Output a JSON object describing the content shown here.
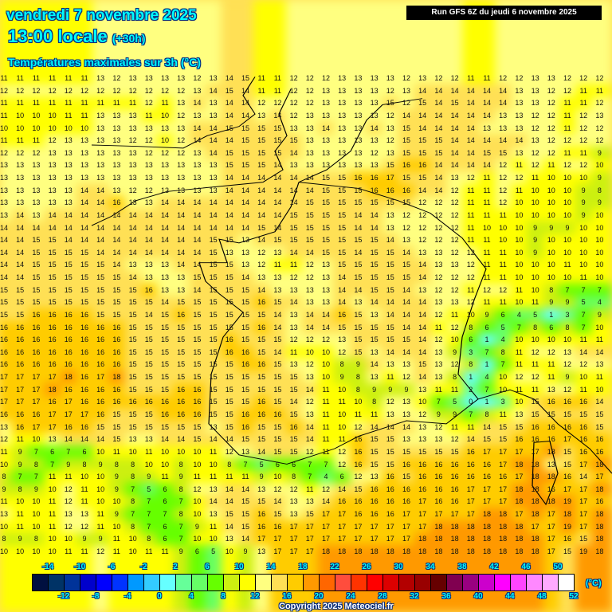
{
  "header": {
    "date": "vendredi 7 novembre 2025",
    "time": "13:00 locale",
    "offset": "(+30h)",
    "product": "Températures maximales sur 3h (°C)",
    "run": "Run GFS 6Z du jeudi 6 novembre 2025"
  },
  "legend": {
    "unit": "(°C)",
    "top_labels": [
      "-14",
      "-10",
      "-6",
      "-2",
      "2",
      "6",
      "10",
      "14",
      "18",
      "22",
      "26",
      "30",
      "34",
      "38",
      "42",
      "46",
      "50"
    ],
    "bottom_labels": [
      "-12",
      "-8",
      "-4",
      "0",
      "4",
      "8",
      "12",
      "16",
      "20",
      "24",
      "28",
      "32",
      "36",
      "40",
      "44",
      "48",
      "52"
    ],
    "colors": [
      "#001040",
      "#003366",
      "#003399",
      "#0000cc",
      "#0000ff",
      "#0033ff",
      "#0099ff",
      "#33ccff",
      "#66ffff",
      "#66ff99",
      "#66ff66",
      "#66ff00",
      "#ccf010",
      "#ffff00",
      "#ffff80",
      "#ffe055",
      "#ffcc00",
      "#ff9900",
      "#ff6600",
      "#ff4d3d",
      "#ff3300",
      "#ff0000",
      "#dd0000",
      "#b30000",
      "#990000",
      "#660000",
      "#800050",
      "#990080",
      "#cc00cc",
      "#ff00ff",
      "#ff44ff",
      "#ff88ff",
      "#ffaaff",
      "#ffffff"
    ],
    "min_boundary": -16,
    "step": 2
  },
  "copyright": "Copyright 2025 Meteociel.fr",
  "grid_values": [
    "11 11 11 11 11 11 13 12 13 13 13 13 12 13 14 15 11 11 12 12 12 13 13 13 13 12 13 12 12 11 11 12 12 13 13 12 12 12",
    "12 12 12 12 12 12 12 12 12 12 12 12 13 14 15 14 11 11 12 12 13 13 13 13 12 13 14 14 14 14 14 14 13 13 12 12 11 11",
    "11 11 11 11 11 11 11 11 11 12 11 13 14 13 14 14 12 12 12 12 13 13 13 13 15 12 15 14 15 14 14 14 13 13 12 11 11 12",
    "11 10 10 10 11 11 13 13 13 11 10 12 13 13 14 14 13 14 12 13 13 13 13 13 12 14 14 14 14 14 14 13 13 12 12 11 12 13",
    "10 10 10 10 10 10 13 13 13 13 13 13 14 14 15 15 15 15 13 13 14 13 13 14 13 15 14 14 14 14 13 13 13 12 12 11 12 12",
    "11 11 11 12 13 13 13 13 12 12 10 12 14 14 14 15 15 15 15 13 13 13 13 13 12 15 15 15 14 14 14 14 14 13 12 12 12 12",
    "12 12 12 13 13 13 13 13 13 12 12 12 13 14 15 15 15 15 14 13 13 13 13 12 13 15 15 15 14 14 15 15 13 12 12 11 11 9",
    "13 13 13 13 13 13 13 13 13 13 13 13 13 13 15 15 15 14 13 13 13 13 13 13 15 16 16 14 14 14 14 12 11 12 11 12 12 10",
    "13 13 13 13 13 13 13 13 13 13 13 13 13 13 14 14 14 14 14 14 15 15 16 16 17 15 15 14 13 12 11 12 12 11 10 10 10 9",
    "13 13 13 13 13 14 14 13 12 12 13 13 13 13 14 14 14 14 14 14 15 15 15 16 16 16 14 14 12 11 11 12 11 10 10 10 9 8",
    "13 13 13 13 13 14 14 16 13 13 14 14 14 14 14 14 14 14 14 15 15 15 15 15 15 15 12 12 12 11 11 12 10 10 10 10 9 9",
    "13 14 13 14 14 14 14 14 14 14 14 14 14 14 14 14 14 14 15 15 15 15 14 14 13 12 12 12 12 11 11 11 10 10 10 10 9 10",
    "14 14 14 14 14 14 14 14 14 14 14 14 14 14 14 14 15 14 15 15 15 15 14 14 13 12 12 12 12 11 10 10 10 9 9 9 10 10",
    "14 14 15 15 14 14 14 14 14 14 14 14 14 15 15 13 14 15 15 15 15 15 15 15 14 13 12 12 12 11 11 10 10 9 10 10 10 10",
    "14 14 15 15 15 15 14 14 14 14 14 14 14 15 13 13 12 13 14 14 15 15 14 15 15 14 13 13 12 12 11 11 10 9 10 10 10 10",
    "14 14 15 15 15 15 15 14 13 13 13 14 14 15 15 13 12 11 11 12 13 15 15 15 15 15 14 13 13 12 11 11 10 10 10 11 10 10",
    "14 14 15 15 15 15 15 15 14 13 13 13 15 15 15 14 13 13 12 12 13 14 15 15 15 15 14 12 12 12 11 11 10 10 10 10 11 10",
    "15 15 15 15 15 15 15 15 15 16 13 13 14 15 15 15 14 13 13 13 13 14 14 15 15 14 13 12 12 11 12 12 11 10 8 7 7 7",
    "15 15 15 15 15 15 15 15 15 15 14 15 15 15 15 15 16 15 14 13 13 14 13 14 14 14 14 13 13 12 11 11 10 11 9 9 5 4",
    "15 15 16 16 16 16 15 15 15 14 15 16 15 15 15 15 15 14 13 14 14 16 15 13 14 14 14 12 11 10 9 6 4 5 1 3 7 9",
    "16 16 16 16 16 16 16 16 15 15 15 15 15 15 15 15 16 14 13 14 14 15 15 15 15 14 14 11 12 8 6 5 7 8 6 8 7 10",
    "16 16 16 16 16 16 16 16 15 15 15 15 15 15 16 15 15 15 12 12 12 13 15 15 15 15 14 12 10 6 1 4 10 10 10 10 11 11",
    "16 16 16 16 16 16 16 16 15 15 15 15 15 15 16 16 15 14 11 10 10 12 15 13 14 14 14 13 9 3 7 8 11 12 12 13 14 14",
    "16 16 16 16 16 16 16 16 15 15 15 15 15 15 15 16 16 15 13 12 10 8 9 14 13 13 15 13 12 8 1 7 11 11 11 12 12 13",
    "17 17 17 17 18 16 17 18 15 15 15 15 15 15 15 15 15 15 15 13 10 9 8 13 11 12 14 13 8 1 4 10 12 12 11 9 10 11",
    "17 17 17 18 16 16 16 16 15 15 15 16 16 15 15 15 15 15 15 14 11 10 8 9 9 9 13 11 11 2 7 10 11 11 13 12 11 10",
    "17 17 17 16 17 16 16 16 16 16 16 16 16 15 15 15 16 15 14 12 11 11 10 8 12 13 10 7 5 0 1 3 10 15 16 16 16 14",
    "16 16 16 17 17 17 16 15 15 15 16 16 16 15 15 16 16 16 15 13 11 10 11 11 13 13 12 9 9 7 8 11 13 15 15 15 15 15",
    "13 16 17 17 16 16 15 15 15 15 15 15 15 13 15 16 15 15 16 14 11 10 12 14 14 14 13 12 11 11 14 15 15 16 16 16 16 15",
    "12 11 10 13 14 14 14 15 13 13 14 14 15 14 14 15 15 15 15 14 11 11 16 15 15 13 13 13 12 14 15 15 16 16 16 17 16 16",
    "11 9 7 6 7 6 10 11 10 11 10 10 10 11 12 13 14 15 15 12 11 12 16 15 15 15 15 15 15 16 17 17 17 17 18 15 16 16",
    "10 9 8 7 9 8 9 8 8 10 10 8 10 10 8 7 5 6 6 7 7 12 16 15 15 16 16 16 16 16 16 17 18 18 13 15 17 18",
    "8 7 7 11 11 10 10 9 8 9 11 9 11 11 11 11 9 10 8 7 4 6 12 13 16 15 16 16 16 16 16 16 17 18 18 16 14 17",
    "9 8 9 10 12 11 10 9 7 5 6 8 12 13 14 14 13 12 12 11 12 14 15 16 16 16 16 16 16 17 17 17 18 18 16 17 17 18",
    "11 10 10 11 12 11 10 10 8 7 6 7 10 14 14 15 15 14 13 13 14 16 16 16 16 16 17 16 16 17 17 17 18 18 18 19 17 16",
    "13 11 10 11 13 13 11 9 7 7 7 8 10 13 15 15 16 15 13 15 17 17 16 16 16 17 17 17 17 17 18 18 17 18 17 18 17 18",
    "10 11 10 11 12 12 11 10 8 7 6 7 9 11 14 15 16 16 17 17 17 17 17 17 17 17 17 18 18 18 18 18 18 17 17 19 17 18",
    "8 9 8 10 10 9 9 11 10 8 6 7 10 10 13 14 17 17 17 17 17 17 17 17 17 17 18 18 18 18 18 18 18 18 17 16 15 18",
    "10 10 10 10 11 11 12 11 10 11 11 9 6 5 10 9 13 17 17 17 18 18 18 18 18 18 18 18 18 18 18 18 18 18 17 15 19 18"
  ]
}
